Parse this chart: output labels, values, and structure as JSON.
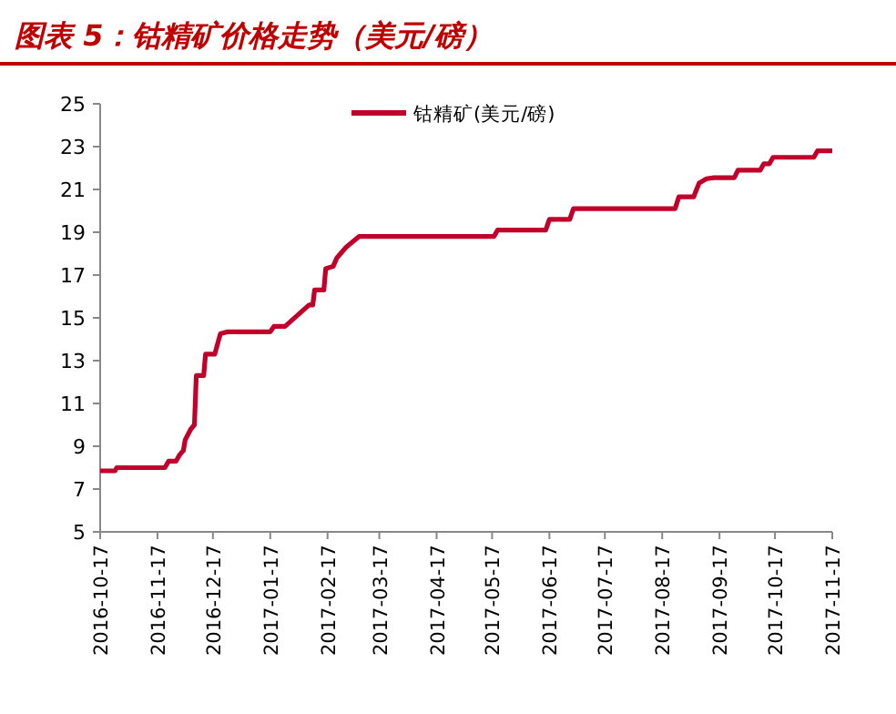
{
  "chart_data": {
    "type": "line",
    "title": "图表 5：钴精矿价格走势（美元/磅）",
    "x": [
      "2016-10-17",
      "2016-10-25",
      "2016-10-26",
      "2016-11-21",
      "2016-11-23",
      "2016-11-27",
      "2016-11-29",
      "2016-12-01",
      "2016-12-02",
      "2016-12-05",
      "2016-12-07",
      "2016-12-08",
      "2016-12-12",
      "2016-12-13",
      "2016-12-18",
      "2016-12-21",
      "2016-12-25",
      "2017-01-17",
      "2017-01-19",
      "2017-01-25",
      "2017-02-07",
      "2017-02-09",
      "2017-02-10",
      "2017-02-15",
      "2017-02-16",
      "2017-02-20",
      "2017-02-22",
      "2017-02-27",
      "2017-03-06",
      "2017-05-18",
      "2017-05-20",
      "2017-06-15",
      "2017-06-17",
      "2017-06-28",
      "2017-06-30",
      "2017-08-24",
      "2017-08-26",
      "2017-09-03",
      "2017-09-06",
      "2017-09-10",
      "2017-09-14",
      "2017-09-25",
      "2017-09-27",
      "2017-10-09",
      "2017-10-11",
      "2017-10-14",
      "2017-10-16",
      "2017-11-07",
      "2017-11-09",
      "2017-11-17"
    ],
    "series": [
      {
        "name": "钴精矿(美元/磅)",
        "color": "#c0002a",
        "values": [
          7.85,
          7.85,
          8.0,
          8.0,
          8.3,
          8.3,
          8.6,
          8.8,
          9.3,
          9.8,
          10.0,
          12.3,
          12.3,
          13.3,
          13.3,
          14.25,
          14.35,
          14.35,
          14.6,
          14.6,
          15.6,
          15.6,
          16.3,
          16.3,
          17.3,
          17.4,
          17.8,
          18.3,
          18.8,
          18.8,
          19.1,
          19.1,
          19.6,
          19.6,
          20.1,
          20.1,
          20.65,
          20.65,
          21.3,
          21.5,
          21.55,
          21.55,
          21.9,
          21.9,
          22.2,
          22.2,
          22.5,
          22.5,
          22.8,
          22.8
        ]
      }
    ],
    "xlim": [
      "2016-10-17",
      "2017-11-17"
    ],
    "xticks": [
      {
        "value": "2016-10-17",
        "label": "2016-10-17"
      },
      {
        "value": "2016-11-17",
        "label": "2016-11-17"
      },
      {
        "value": "2016-12-17",
        "label": "2016-12-17"
      },
      {
        "value": "2017-01-17",
        "label": "2017-01-17"
      },
      {
        "value": "2017-02-17",
        "label": "2017-02-17"
      },
      {
        "value": "2017-03-17",
        "label": "2017-03-17"
      },
      {
        "value": "2017-04-17",
        "label": "2017-04-17"
      },
      {
        "value": "2017-05-17",
        "label": "2017-05-17"
      },
      {
        "value": "2017-06-17",
        "label": "2017-06-17"
      },
      {
        "value": "2017-07-17",
        "label": "2017-07-17"
      },
      {
        "value": "2017-08-17",
        "label": "2017-08-17"
      },
      {
        "value": "2017-09-17",
        "label": "2017-09-17"
      },
      {
        "value": "2017-10-17",
        "label": "2017-10-17"
      },
      {
        "value": "2017-11-17",
        "label": "2017-11-17"
      }
    ],
    "ylim": [
      5,
      25
    ],
    "yticks": [
      5,
      7,
      9,
      11,
      13,
      15,
      17,
      19,
      21,
      23,
      25
    ],
    "legend": "top"
  }
}
